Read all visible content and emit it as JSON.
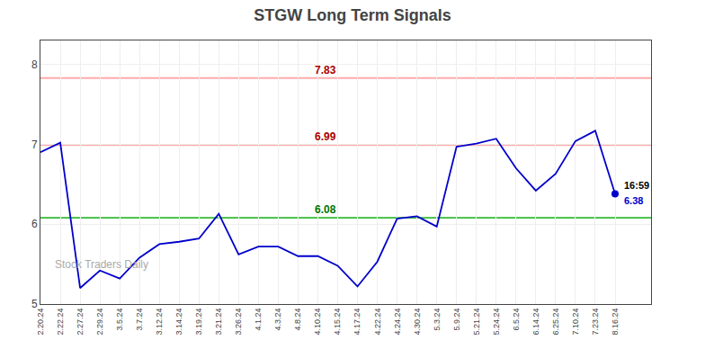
{
  "chart_data": {
    "type": "line",
    "title": "STGW Long Term Signals",
    "categories": [
      "2.20.24",
      "2.22.24",
      "2.27.24",
      "2.29.24",
      "3.5.24",
      "3.7.24",
      "3.12.24",
      "3.14.24",
      "3.19.24",
      "3.21.24",
      "3.26.24",
      "4.1.24",
      "4.3.24",
      "4.8.24",
      "4.10.24",
      "4.15.24",
      "4.17.24",
      "4.22.24",
      "4.24.24",
      "4.30.24",
      "5.3.24",
      "5.9.24",
      "5.21.24",
      "5.24.24",
      "6.5.24",
      "6.14.24",
      "6.25.24",
      "7.10.24",
      "7.23.24",
      "8.16.24"
    ],
    "values": [
      6.9,
      7.02,
      5.2,
      5.42,
      5.32,
      5.58,
      5.75,
      5.78,
      5.82,
      6.13,
      5.62,
      5.72,
      5.72,
      5.6,
      5.6,
      5.48,
      5.22,
      5.53,
      6.07,
      6.1,
      5.97,
      6.97,
      7.01,
      7.07,
      6.7,
      6.42,
      6.63,
      7.04,
      7.17,
      6.38
    ],
    "color": "#0000cc",
    "ylim": [
      5.0,
      8.3
    ],
    "yticks": [
      5,
      6,
      7,
      8
    ],
    "grid": true,
    "hlines": [
      {
        "value": 7.83,
        "color": "#ffaaaa",
        "label": "7.83",
        "label_color": "#aa0000"
      },
      {
        "value": 6.99,
        "color": "#ffaaaa",
        "label": "6.99",
        "label_color": "#aa0000"
      },
      {
        "value": 6.08,
        "color": "#33bb33",
        "label": "6.08",
        "label_color": "#007700"
      }
    ],
    "last_point": {
      "value": 6.38,
      "color": "#0000cc",
      "time_label": "16:59",
      "value_label": "6.38"
    },
    "watermark": "Stock Traders Daily"
  }
}
